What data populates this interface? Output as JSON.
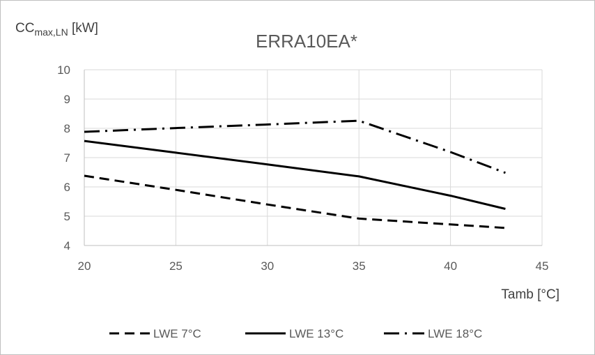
{
  "chart_data": {
    "type": "line",
    "title": "ERRA10EA*",
    "ylabel": {
      "main": "CC",
      "sub": "max,LN",
      "unit": " [kW]"
    },
    "xlabel": "Tamb [°C]",
    "xlim": [
      20,
      45
    ],
    "ylim": [
      4,
      10
    ],
    "xticks": [
      20,
      25,
      30,
      35,
      40,
      45
    ],
    "yticks": [
      4,
      5,
      6,
      7,
      8,
      9,
      10
    ],
    "grid": true,
    "legend_position": "bottom",
    "series": [
      {
        "name": "LWE 7°C",
        "style": "dashed",
        "color": "#000000",
        "x": [
          20,
          25,
          30,
          35,
          40,
          43
        ],
        "y": [
          6.38,
          5.9,
          5.4,
          4.92,
          4.72,
          4.6
        ]
      },
      {
        "name": "LWE 13°C",
        "style": "solid",
        "color": "#000000",
        "x": [
          20,
          25,
          30,
          35,
          40,
          43
        ],
        "y": [
          7.57,
          7.17,
          6.77,
          6.36,
          5.7,
          5.25
        ]
      },
      {
        "name": "LWE 18°C",
        "style": "dashdot",
        "color": "#000000",
        "x": [
          20,
          25,
          30,
          35,
          40,
          43
        ],
        "y": [
          7.88,
          8.01,
          8.13,
          8.26,
          7.19,
          6.48
        ]
      }
    ]
  }
}
